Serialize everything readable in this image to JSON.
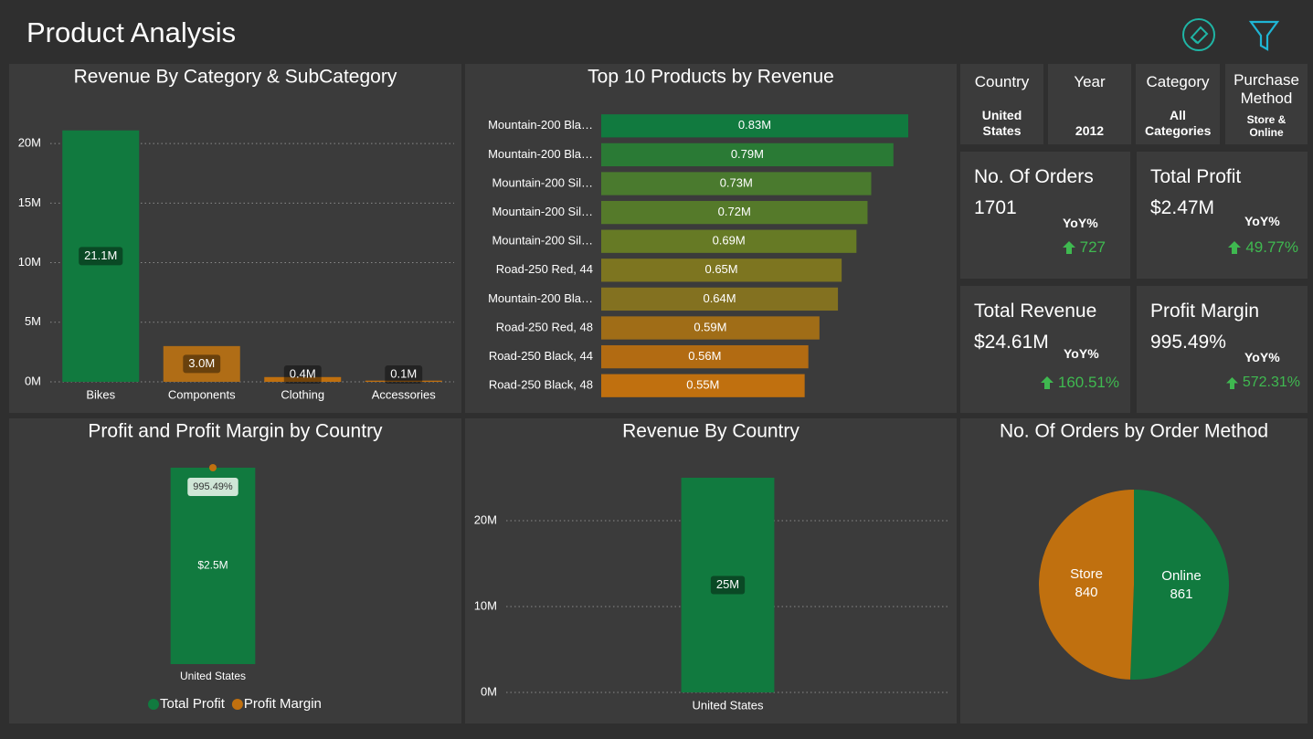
{
  "header": {
    "title": "Product Analysis"
  },
  "slicers": [
    {
      "label": "Country",
      "value": "United States"
    },
    {
      "label": "Year",
      "value": "2012"
    },
    {
      "label": "Category",
      "value": "All Categories"
    },
    {
      "label": "Purchase Method",
      "value": "Store & Online"
    }
  ],
  "kpis": [
    {
      "title": "No. Of Orders",
      "value": "1701",
      "yoy_label": "YoY%",
      "yoy": "727"
    },
    {
      "title": "Total Profit",
      "value": "$2.47M",
      "yoy_label": "YoY%",
      "yoy": "49.77%"
    },
    {
      "title": "Total Revenue",
      "value": "$24.61M",
      "yoy_label": "YoY%",
      "yoy": "160.51%"
    },
    {
      "title": "Profit Margin",
      "value": "995.49%",
      "yoy_label": "YoY%",
      "yoy": "572.31%"
    }
  ],
  "chart_data": [
    {
      "type": "bar",
      "title": "Revenue By Category & SubCategory",
      "categories": [
        "Bikes",
        "Components",
        "Clothing",
        "Accessories"
      ],
      "values": [
        21.1,
        3.0,
        0.4,
        0.1
      ],
      "value_labels": [
        "21.1M",
        "3.0M",
        "0.4M",
        "0.1M"
      ],
      "colors": [
        "#117a3f",
        "#b06d16",
        "#c0700f",
        "#c0700f"
      ],
      "ylim": [
        0,
        22
      ],
      "yticks": [
        {
          "value": 0,
          "label": "0M"
        },
        {
          "value": 5,
          "label": "5M"
        },
        {
          "value": 10,
          "label": "10M"
        },
        {
          "value": 15,
          "label": "15M"
        },
        {
          "value": 20,
          "label": "20M"
        }
      ],
      "grid": true
    },
    {
      "type": "hbar",
      "title": "Top 10 Products by Revenue",
      "categories": [
        "Mountain-200 Bla…",
        "Mountain-200 Bla…",
        "Mountain-200 Sil…",
        "Mountain-200 Sil…",
        "Mountain-200 Sil…",
        "Road-250 Red, 44",
        "Mountain-200 Bla…",
        "Road-250 Red, 48",
        "Road-250 Black, 44",
        "Road-250 Black, 48"
      ],
      "values": [
        0.83,
        0.79,
        0.73,
        0.72,
        0.69,
        0.65,
        0.64,
        0.59,
        0.56,
        0.55
      ],
      "value_labels": [
        "0.83M",
        "0.79M",
        "0.73M",
        "0.72M",
        "0.69M",
        "0.65M",
        "0.64M",
        "0.59M",
        "0.56M",
        "0.55M"
      ],
      "colors": [
        "#117a3f",
        "#2a7a35",
        "#4a7a2e",
        "#557a2a",
        "#667a25",
        "#7d7520",
        "#837120",
        "#a06d17",
        "#b26b12",
        "#c0700f"
      ],
      "xlim": [
        0,
        0.83
      ]
    },
    {
      "type": "combo",
      "title": "Profit and Profit Margin by Country",
      "categories": [
        "United States"
      ],
      "series": [
        {
          "name": "Total Profit",
          "color": "#117a3f",
          "values": [
            2.5
          ],
          "value_labels": [
            "$2.5M"
          ]
        },
        {
          "name": "Profit Margin",
          "color": "#c0700f",
          "values": [
            995.49
          ],
          "value_labels": [
            "995.49%"
          ],
          "axis": "y2"
        }
      ],
      "ylim": [
        0,
        2.5
      ],
      "y2lim": [
        0,
        995.49
      ],
      "legend": "bottom"
    },
    {
      "type": "bar",
      "title": "Revenue By Country",
      "categories": [
        "United States"
      ],
      "values": [
        25
      ],
      "value_labels": [
        "25M"
      ],
      "colors": [
        "#117a3f"
      ],
      "ylim": [
        0,
        25
      ],
      "yticks": [
        {
          "value": 0,
          "label": "0M"
        },
        {
          "value": 10,
          "label": "10M"
        },
        {
          "value": 20,
          "label": "20M"
        }
      ],
      "grid": true
    },
    {
      "type": "pie",
      "title": "No. Of Orders by Order Method",
      "categories": [
        "Online",
        "Store"
      ],
      "values": [
        861,
        840
      ],
      "colors": [
        "#117a3f",
        "#c0700f"
      ]
    }
  ]
}
